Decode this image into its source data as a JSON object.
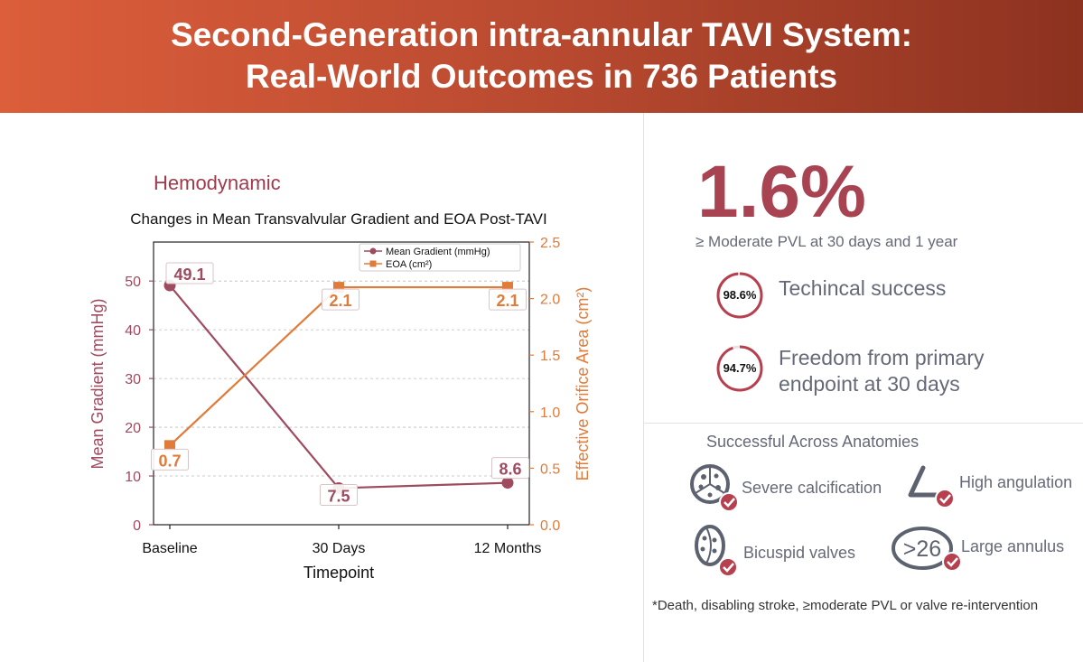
{
  "header": {
    "line1": "Second-Generation intra-annular TAVI System:",
    "line2": "Real-World Outcomes in 736 Patients"
  },
  "left": {
    "section_title": "Hemodynamic"
  },
  "chart_data": {
    "type": "line",
    "title": "Changes in Mean Transvalvular Gradient and EOA Post-TAVI",
    "xlabel": "Timepoint",
    "categories": [
      "Baseline",
      "30 Days",
      "12 Months"
    ],
    "series": [
      {
        "name": "Mean Gradient (mmHg)",
        "values": [
          49.1,
          7.5,
          8.6
        ],
        "labels": [
          "49.1",
          "7.5",
          "8.6"
        ],
        "color": "#9e4a5f",
        "axis": "left",
        "marker": "circle"
      },
      {
        "name": "EOA (cm²)",
        "values": [
          0.7,
          2.1,
          2.1
        ],
        "labels": [
          "0.7",
          "2.1",
          "2.1"
        ],
        "color": "#e07b3a",
        "axis": "right",
        "marker": "square"
      }
    ],
    "y_left": {
      "label": "Mean Gradient (mmHg)",
      "ylim": [
        0,
        58
      ],
      "ticks": [
        0,
        10,
        20,
        30,
        40,
        50
      ],
      "color": "#9e4a5f"
    },
    "y_right": {
      "label": "Effective Orifice Area (cm²)",
      "ylim": [
        0,
        2.5
      ],
      "ticks": [
        "0.0",
        "0.5",
        "1.0",
        "1.5",
        "2.0",
        "2.5"
      ],
      "color": "#e07b3a"
    },
    "grid": true,
    "legend_position": "top-right"
  },
  "right": {
    "big_stat": "1.6%",
    "big_stat_label": "≥ Moderate PVL at 30 days and 1 year",
    "stats": [
      {
        "pct": "98.6%",
        "value": 98.6,
        "label_line1": "Techincal success",
        "label_line2": ""
      },
      {
        "pct": "94.7%",
        "value": 94.7,
        "label_line1": "Freedom from primary",
        "label_line2": "endpoint at 30 days"
      }
    ],
    "anatomies_title": "Successful Across Anatomies",
    "anatomies": [
      {
        "label": "Severe calcification",
        "icon": "calcified-valve-icon"
      },
      {
        "label": "High angulation",
        "icon": "angulation-icon"
      },
      {
        "label": "Bicuspid valves",
        "icon": "bicuspid-valve-icon"
      },
      {
        "label": "Large annulus",
        "icon": "large-annulus-icon",
        "icon_text": ">26"
      }
    ],
    "footnote": "*Death, disabling stroke, ≥moderate PVL or valve re-intervention"
  },
  "colors": {
    "accent": "#a84452",
    "orange": "#e07b3a",
    "text_gray": "#666a78",
    "check": "#b7404f"
  }
}
